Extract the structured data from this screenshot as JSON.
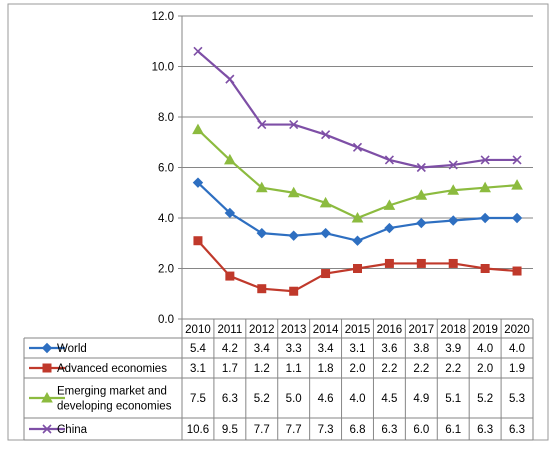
{
  "chart_data": {
    "type": "line",
    "categories": [
      "2010",
      "2011",
      "2012",
      "2013",
      "2014",
      "2015",
      "2016",
      "2017",
      "2018",
      "2019",
      "2020"
    ],
    "yticks": [
      "0.0",
      "2.0",
      "4.0",
      "6.0",
      "8.0",
      "10.0",
      "12.0"
    ],
    "ylim": [
      0,
      12
    ],
    "grid": "horizontal",
    "legend": "data-table",
    "series": [
      {
        "name": "World",
        "label_lines": [
          "World"
        ],
        "values": [
          5.4,
          4.2,
          3.4,
          3.3,
          3.4,
          3.1,
          3.6,
          3.8,
          3.9,
          4.0,
          4.0
        ],
        "value_labels": [
          "5.4",
          "4.2",
          "3.4",
          "3.3",
          "3.4",
          "3.1",
          "3.6",
          "3.8",
          "3.9",
          "4.0",
          "4.0"
        ],
        "color": "#2e6fc1",
        "marker": "diamond"
      },
      {
        "name": "Advanced economies",
        "label_lines": [
          "Advanced economies"
        ],
        "values": [
          3.1,
          1.7,
          1.2,
          1.1,
          1.8,
          2.0,
          2.2,
          2.2,
          2.2,
          2.0,
          1.9
        ],
        "value_labels": [
          "3.1",
          "1.7",
          "1.2",
          "1.1",
          "1.8",
          "2.0",
          "2.2",
          "2.2",
          "2.2",
          "2.0",
          "1.9"
        ],
        "color": "#c0392b",
        "marker": "square"
      },
      {
        "name": "Emerging market and developing economies",
        "label_lines": [
          "Emerging market and",
          "developing economies"
        ],
        "values": [
          7.5,
          6.3,
          5.2,
          5.0,
          4.6,
          4.0,
          4.5,
          4.9,
          5.1,
          5.2,
          5.3
        ],
        "value_labels": [
          "7.5",
          "6.3",
          "5.2",
          "5.0",
          "4.6",
          "4.0",
          "4.5",
          "4.9",
          "5.1",
          "5.2",
          "5.3"
        ],
        "color": "#8cbb3f",
        "marker": "triangle"
      },
      {
        "name": "China",
        "label_lines": [
          "China"
        ],
        "values": [
          10.6,
          9.5,
          7.7,
          7.7,
          7.3,
          6.8,
          6.3,
          6.0,
          6.1,
          6.3,
          6.3
        ],
        "value_labels": [
          "10.6",
          "9.5",
          "7.7",
          "7.7",
          "7.3",
          "6.8",
          "6.3",
          "6.0",
          "6.1",
          "6.3",
          "6.3"
        ],
        "color": "#7e4fa6",
        "marker": "x"
      }
    ]
  }
}
